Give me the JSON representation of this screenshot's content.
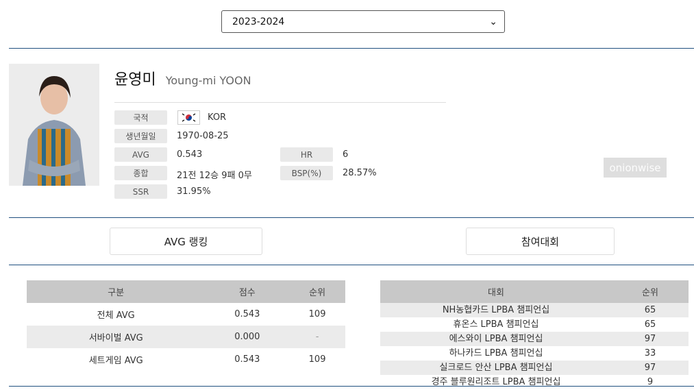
{
  "season_select": {
    "value": "2023-2024"
  },
  "player": {
    "name_kr": "윤영미",
    "name_en": "Young-mi YOON",
    "fields": [
      {
        "label": "국적",
        "value": "KOR"
      },
      {
        "label": "생년월일",
        "value": "1970-08-25"
      },
      {
        "label": "AVG",
        "value": "0.543"
      },
      {
        "label": "HR",
        "value": "6"
      },
      {
        "label": "종합",
        "value": "21전 12승 9패 0무"
      },
      {
        "label": "BSP(%)",
        "value": "28.57%"
      },
      {
        "label": "SSR",
        "value": "31.95%"
      }
    ],
    "flag_icon": "south-korea-flag"
  },
  "tabs": {
    "avg_ranking": "AVG 랭킹",
    "tournaments": "참여대회"
  },
  "avg_table": {
    "headers": [
      "구분",
      "점수",
      "순위"
    ],
    "rows": [
      [
        "전체 AVG",
        "0.543",
        "109"
      ],
      [
        "서바이벌 AVG",
        "0.000",
        "-"
      ],
      [
        "세트게임 AVG",
        "0.543",
        "109"
      ]
    ]
  },
  "tournament_table": {
    "headers": [
      "대회",
      "순위"
    ],
    "rows": [
      [
        "NH농협카드 LPBA 챔피언십",
        "65"
      ],
      [
        "휴온스 LPBA 챔피언십",
        "65"
      ],
      [
        "에스와이 LPBA 챔피언십",
        "97"
      ],
      [
        "하나카드 LPBA 챔피언십",
        "33"
      ],
      [
        "실크로드 안산 LPBA 챔피언십",
        "97"
      ],
      [
        "경주 블루원리조트 LPBA 챔피언십",
        "9"
      ]
    ]
  },
  "watermark": "onionwise"
}
